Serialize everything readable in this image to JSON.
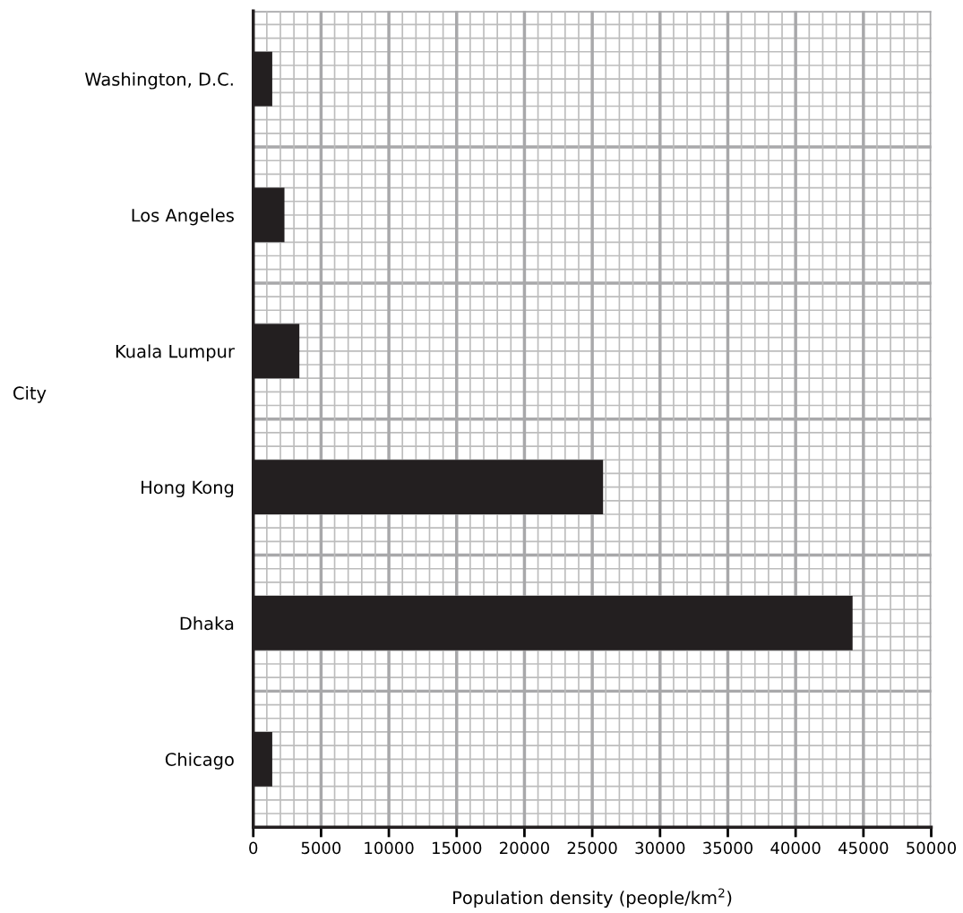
{
  "chart_data": {
    "type": "bar",
    "orientation": "horizontal",
    "categories": [
      "Washington, D.C.",
      "Los Angeles",
      "Kuala Lumpur",
      "Hong Kong",
      "Dhaka",
      "Chicago"
    ],
    "values": [
      1400,
      2300,
      3400,
      25800,
      44200,
      1400
    ],
    "color": "#231f20",
    "xlabel": "Population density (people/km$^{2}$)",
    "ylabel": "City",
    "xlim": [
      0,
      50000
    ],
    "xticks": [
      0,
      5000,
      10000,
      15000,
      20000,
      25000,
      30000,
      35000,
      40000,
      45000,
      50000
    ],
    "grid": true
  }
}
